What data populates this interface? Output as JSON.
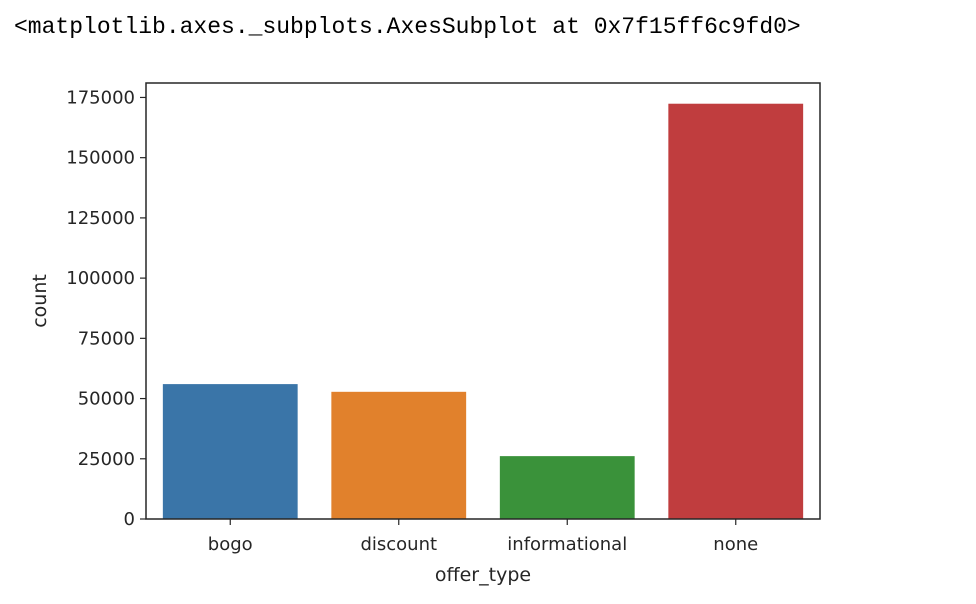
{
  "output_repr": "<matplotlib.axes._subplots.AxesSubplot at 0x7f15ff6c9fd0>",
  "chart_data": {
    "type": "bar",
    "categories": [
      "bogo",
      "discount",
      "informational",
      "none"
    ],
    "values": [
      56000,
      52800,
      26100,
      172400
    ],
    "colors": [
      "#3a75a8",
      "#e1812c",
      "#3a923a",
      "#c03d3e"
    ],
    "xlabel": "offer_type",
    "ylabel": "count",
    "ylim": [
      0,
      181000
    ],
    "yticks": [
      0,
      25000,
      50000,
      75000,
      100000,
      125000,
      150000,
      175000
    ],
    "ytick_labels": [
      "0",
      "25000",
      "50000",
      "75000",
      "100000",
      "125000",
      "150000",
      "175000"
    ],
    "grid": false,
    "legend": "none"
  }
}
